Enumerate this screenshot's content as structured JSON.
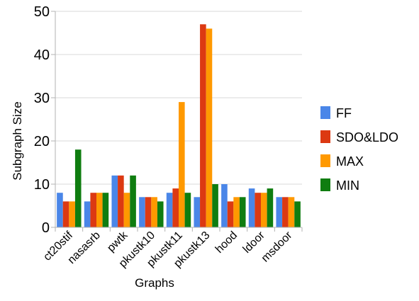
{
  "chart_data": {
    "type": "bar",
    "title": "",
    "xlabel": "Graphs",
    "ylabel": "Subgraph Size",
    "ylim": [
      0,
      50
    ],
    "yticks": [
      0,
      10,
      20,
      30,
      40,
      50
    ],
    "grid": "horizontal",
    "legend_position": "right",
    "categories": [
      "ct20stif",
      "nasasrb",
      "pwtk",
      "pkustk10",
      "pkustk11",
      "pkustk13",
      "hood",
      "ldoor",
      "msdoor"
    ],
    "series": [
      {
        "name": "FF",
        "color": "#4a86e8",
        "values": [
          8,
          6,
          12,
          7,
          8,
          7,
          10,
          9,
          7
        ]
      },
      {
        "name": "SDO&LDO",
        "color": "#dc3912",
        "values": [
          6,
          8,
          12,
          7,
          9,
          47,
          6,
          8,
          7
        ]
      },
      {
        "name": "MAX",
        "color": "#ff9900",
        "values": [
          6,
          8,
          8,
          7,
          29,
          46,
          7,
          8,
          7
        ]
      },
      {
        "name": "MIN",
        "color": "#0f7d10",
        "values": [
          18,
          8,
          12,
          6,
          8,
          10,
          7,
          9,
          6
        ]
      }
    ]
  }
}
